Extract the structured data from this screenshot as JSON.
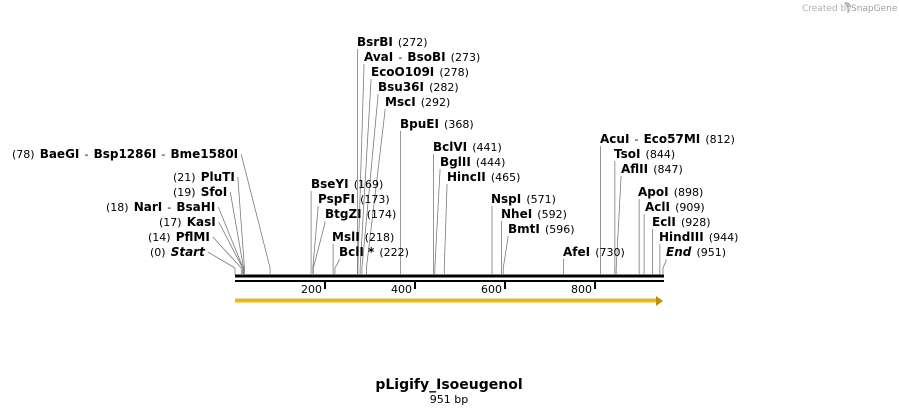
{
  "credit": {
    "prefix": "Created by",
    "brand": "SnapGene",
    "logo_icon": "snapgene-logo-icon"
  },
  "map": {
    "name": "pLigify_Isoeugenol",
    "length_label": "951 bp",
    "length": 951,
    "tick_labels": [
      "200",
      "400",
      "600",
      "800"
    ],
    "ticks": [
      200,
      400,
      600,
      800
    ],
    "feature": {
      "name": "orf-arrow",
      "start": 1,
      "end": 951,
      "color": "#f5b800"
    }
  },
  "sites": [
    {
      "id": "bsrbi",
      "label": "BsrBI",
      "pos_text": "(272)",
      "pos": 272
    },
    {
      "id": "avai",
      "label": "AvaI",
      "sep": "-",
      "label2": "BsoBI",
      "pos_text": "(273)",
      "pos": 273
    },
    {
      "id": "ecoo109i",
      "label": "EcoO109I",
      "pos_text": "(278)",
      "pos": 278
    },
    {
      "id": "bsu36i",
      "label": "Bsu36I",
      "pos_text": "(282)",
      "pos": 282
    },
    {
      "id": "msci",
      "label": "MscI",
      "pos_text": "(292)",
      "pos": 292
    },
    {
      "id": "bpuei",
      "label": "BpuEI",
      "pos_text": "(368)",
      "pos": 368
    },
    {
      "id": "baegi",
      "pos_text": "(78)",
      "label": "BaeGI",
      "sep": "-",
      "label2": "Bsp1286I",
      "sep2": "-",
      "label3": "Bme1580I",
      "pos": 78
    },
    {
      "id": "plutii",
      "pos_text": "(21)",
      "label": "PluTI",
      "pos": 21
    },
    {
      "id": "sfoi",
      "pos_text": "(19)",
      "label": "SfoI",
      "pos": 19
    },
    {
      "id": "nari",
      "pos_text": "(18)",
      "label": "NarI",
      "sep": "-",
      "label2": "BsaHI",
      "pos": 18
    },
    {
      "id": "kasi",
      "pos_text": "(17)",
      "label": "KasI",
      "pos": 17
    },
    {
      "id": "pflmi",
      "pos_text": "(14)",
      "label": "PflMI",
      "pos": 14
    },
    {
      "id": "start",
      "pos_text": "(0)",
      "label": "Start",
      "italic": true,
      "pos": 0
    },
    {
      "id": "bseyi",
      "label": "BseYI",
      "pos_text": "(169)",
      "pos": 169
    },
    {
      "id": "pspfi",
      "label": "PspFI",
      "pos_text": "(173)",
      "pos": 173
    },
    {
      "id": "btgzi",
      "label": "BtgZI",
      "pos_text": "(174)",
      "pos": 174
    },
    {
      "id": "msli",
      "label": "MslI",
      "pos_text": "(218)",
      "pos": 218
    },
    {
      "id": "bcli",
      "label": "BclI *",
      "pos_text": "(222)",
      "pos": 222
    },
    {
      "id": "bclvi",
      "label": "BclVI",
      "pos_text": "(441)",
      "pos": 441
    },
    {
      "id": "bglii",
      "label": "BglII",
      "pos_text": "(444)",
      "pos": 444
    },
    {
      "id": "hincii",
      "label": "HincII",
      "pos_text": "(465)",
      "pos": 465
    },
    {
      "id": "nspi",
      "label": "NspI",
      "pos_text": "(571)",
      "pos": 571
    },
    {
      "id": "nhei",
      "label": "NheI",
      "pos_text": "(592)",
      "pos": 592
    },
    {
      "id": "bmti",
      "label": "BmtI",
      "pos_text": "(596)",
      "pos": 596
    },
    {
      "id": "afei",
      "label": "AfeI",
      "pos_text": "(730)",
      "pos": 730
    },
    {
      "id": "acui",
      "label": "AcuI",
      "sep": "-",
      "label2": "Eco57MI",
      "pos_text": "(812)",
      "pos": 812
    },
    {
      "id": "tsoi",
      "label": "TsoI",
      "pos_text": "(844)",
      "pos": 844
    },
    {
      "id": "aflii",
      "label": "AflII",
      "pos_text": "(847)",
      "pos": 847
    },
    {
      "id": "apoi",
      "label": "ApoI",
      "pos_text": "(898)",
      "pos": 898
    },
    {
      "id": "acli",
      "label": "AclI",
      "pos_text": "(909)",
      "pos": 909
    },
    {
      "id": "ecli",
      "label": "EclI",
      "pos_text": "(928)",
      "pos": 928
    },
    {
      "id": "hindiii",
      "label": "HindIII",
      "pos_text": "(944)",
      "pos": 944
    },
    {
      "id": "end",
      "label": "End",
      "italic": true,
      "pos_text": "(951)",
      "pos": 951
    }
  ]
}
